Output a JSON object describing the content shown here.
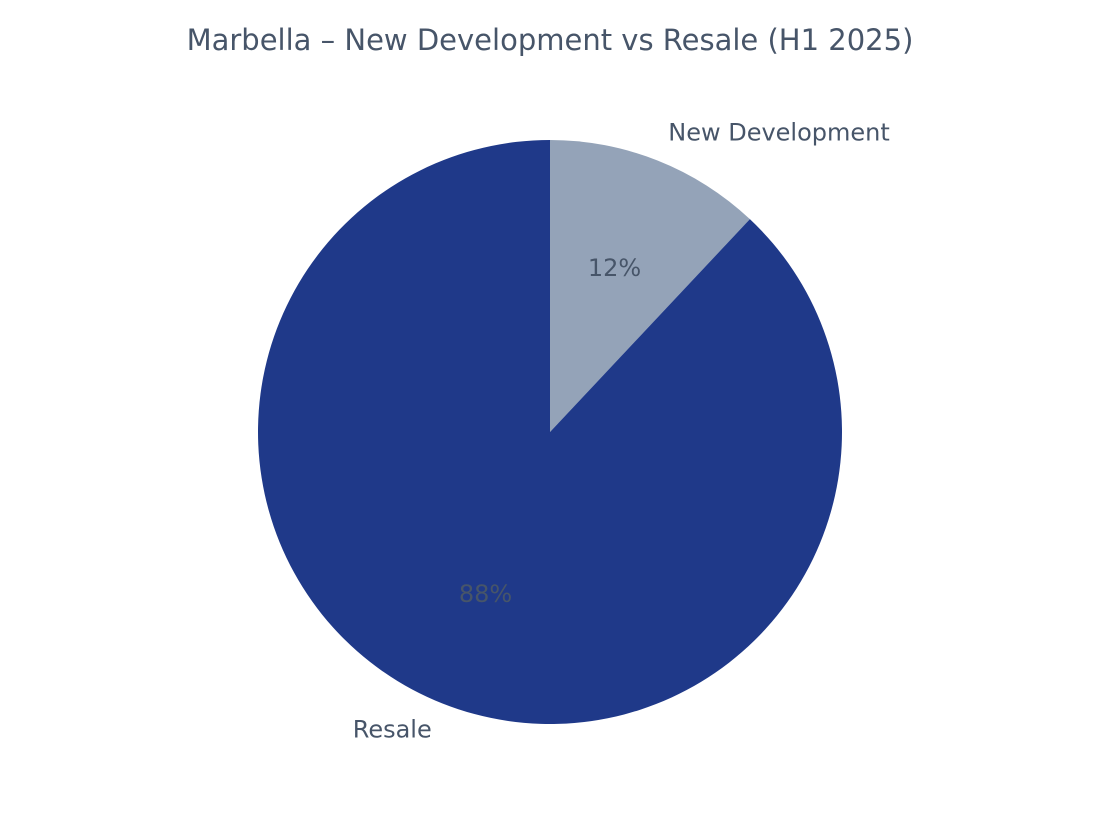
{
  "chart_data": {
    "type": "pie",
    "title": "Marbella – New Development vs Resale (H1 2025)",
    "slices": [
      {
        "label": "New Development",
        "value": 12,
        "pct_label": "12%",
        "color": "#94a3b8",
        "pct_color": "#475569"
      },
      {
        "label": "Resale",
        "value": 88,
        "pct_label": "88%",
        "color": "#1f3989",
        "pct_color": "#475569"
      }
    ],
    "start_angle_deg": 90,
    "direction": "clockwise",
    "legend": "none"
  },
  "colors": {
    "background": "#ffffff",
    "text": "#475569"
  }
}
